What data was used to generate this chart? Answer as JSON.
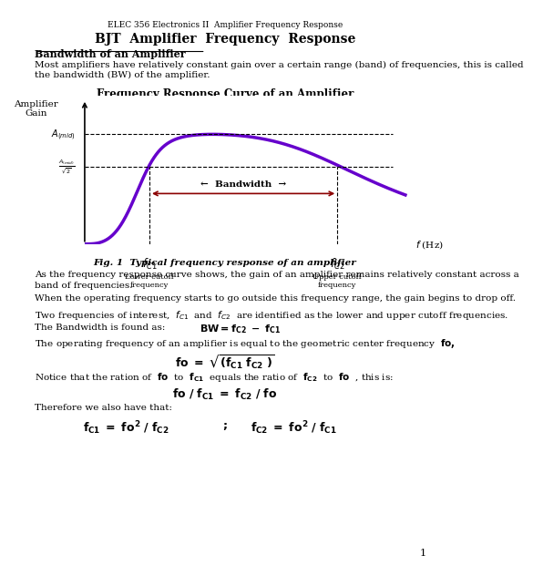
{
  "header": "ELEC 356 Electronics II  Amplifier Frequency Response",
  "title": "BJT  Amplifier  Frequency  Response",
  "section_title": "Bandwidth of an Amplifier",
  "para1": "Most amplifiers have relatively constant gain over a certain range (band) of frequencies, this is called\nthe bandwidth (BW) of the amplifier.",
  "graph_title": "Frequency Response Curve of an Amplifier",
  "fig_caption": "Fig. 1  Typical frequency response of an amplifier",
  "para2": "As the frequency response curve shows, the gain of an amplifier remains relatively constant across a\nband of frequencies.",
  "para3": "When the operating frequency starts to go outside this frequency range, the gain begins to drop off.",
  "para4": "Two frequencies of interest,  $f_{C1}$  and  $f_{C2}$  are identified as the lower and upper cutoff frequencies.",
  "para5a": "The Bandwidth is found as:",
  "para5b": "$\\mathbf{BW = f_{C2}\\ -\\ f_{C1}}$",
  "para6": "The operating frequency of an amplifier is equal to the geometric center frequency  $\\mathbf{fo,}$",
  "fo_eq": "$\\mathbf{fo\\ =\\ \\sqrt{(f_{C1}\\ f_{C2}\\ )}}$",
  "para7": "Notice that the ration of  $\\mathbf{fo}$  to  $\\mathbf{f_{C1}}$  equals the ratio of  $\\mathbf{f_{C2}}$  to  $\\mathbf{fo}$  , this is:",
  "ratio_eq": "$\\mathbf{fo\\ /\\ f_{C1}\\ =\\ f_{C2}\\ /\\ fo}$",
  "therefore": "Therefore we also have that:",
  "final_eq1": "$\\mathbf{f_{C1}\\ =\\ fo^2\\ /\\ f_{C2}}$",
  "final_eq2": "$\\mathbf{f_{C2}\\ =\\ fo^2\\ /\\ f_{C1}}$",
  "page_num": "1",
  "curve_color": "#6600cc",
  "arrow_color": "#8B0000",
  "bg_color": "#ffffff"
}
